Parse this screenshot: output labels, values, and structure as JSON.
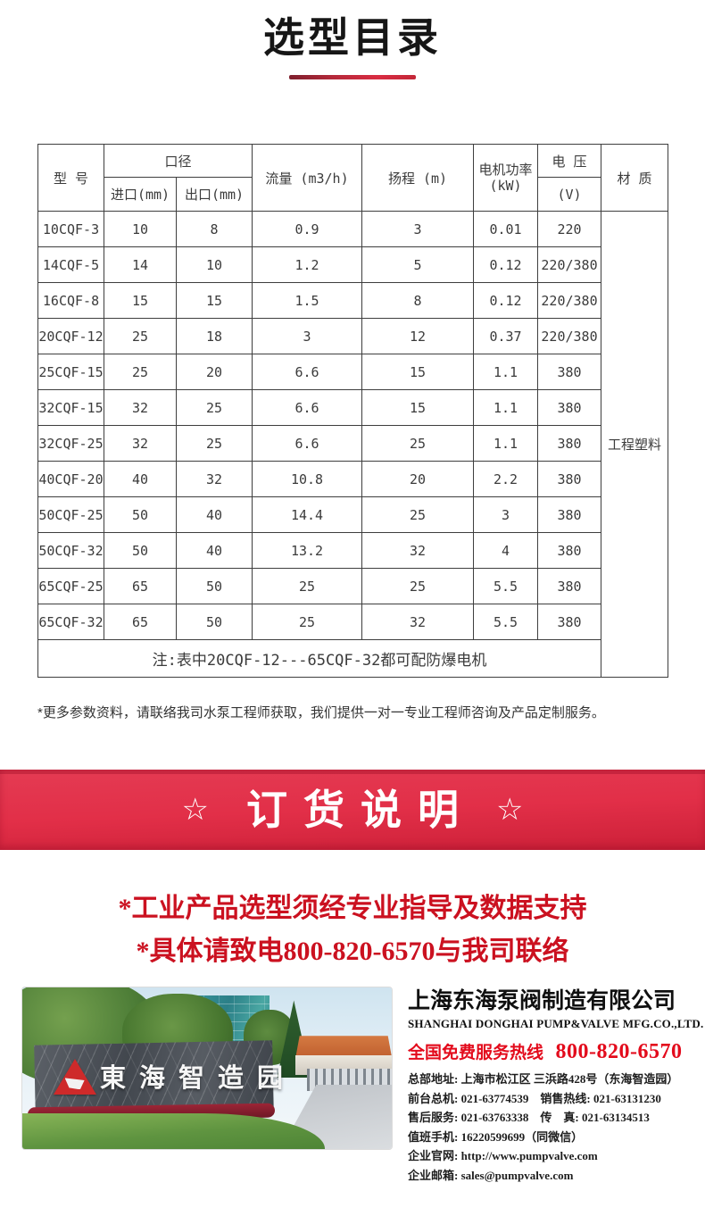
{
  "page_title": "选型目录",
  "table": {
    "header": {
      "model": "型 号",
      "caliber": "口径",
      "inlet": "进口(mm)",
      "outlet": "出口(mm)",
      "flow": "流量 (m3/h)",
      "head": "扬程 (m)",
      "power_line1": "电机功率",
      "power_line2": "(kW)",
      "voltage": "电 压",
      "voltage_unit": "(V)",
      "material": "材 质"
    },
    "rows": [
      {
        "model": "10CQF-3",
        "inlet": "10",
        "outlet": "8",
        "flow": "0.9",
        "head": "3",
        "power": "0.01",
        "voltage": "220"
      },
      {
        "model": "14CQF-5",
        "inlet": "14",
        "outlet": "10",
        "flow": "1.2",
        "head": "5",
        "power": "0.12",
        "voltage": "220/380"
      },
      {
        "model": "16CQF-8",
        "inlet": "15",
        "outlet": "15",
        "flow": "1.5",
        "head": "8",
        "power": "0.12",
        "voltage": "220/380"
      },
      {
        "model": "20CQF-12",
        "inlet": "25",
        "outlet": "18",
        "flow": "3",
        "head": "12",
        "power": "0.37",
        "voltage": "220/380"
      },
      {
        "model": "25CQF-15",
        "inlet": "25",
        "outlet": "20",
        "flow": "6.6",
        "head": "15",
        "power": "1.1",
        "voltage": "380"
      },
      {
        "model": "32CQF-15",
        "inlet": "32",
        "outlet": "25",
        "flow": "6.6",
        "head": "15",
        "power": "1.1",
        "voltage": "380"
      },
      {
        "model": "32CQF-25",
        "inlet": "32",
        "outlet": "25",
        "flow": "6.6",
        "head": "25",
        "power": "1.1",
        "voltage": "380"
      },
      {
        "model": "40CQF-20",
        "inlet": "40",
        "outlet": "32",
        "flow": "10.8",
        "head": "20",
        "power": "2.2",
        "voltage": "380"
      },
      {
        "model": "50CQF-25",
        "inlet": "50",
        "outlet": "40",
        "flow": "14.4",
        "head": "25",
        "power": "3",
        "voltage": "380"
      },
      {
        "model": "50CQF-32",
        "inlet": "50",
        "outlet": "40",
        "flow": "13.2",
        "head": "32",
        "power": "4",
        "voltage": "380"
      },
      {
        "model": "65CQF-25",
        "inlet": "65",
        "outlet": "50",
        "flow": "25",
        "head": "25",
        "power": "5.5",
        "voltage": "380"
      },
      {
        "model": "65CQF-32",
        "inlet": "65",
        "outlet": "50",
        "flow": "25",
        "head": "32",
        "power": "5.5",
        "voltage": "380"
      }
    ],
    "material_value": "工程塑料",
    "note": "注:表中20CQF-12---65CQF-32都可配防爆电机"
  },
  "footnote": "*更多参数资料，请联络我司水泵工程师获取，我们提供一对一专业工程师咨询及产品定制服务。",
  "order_banner": {
    "left_star": "☆",
    "title": "订货说明",
    "right_star": "☆"
  },
  "order_notes": {
    "line1": "*工业产品选型须经专业指导及数据支持",
    "line2": "*具体请致电800-820-6570与我司联络"
  },
  "photo": {
    "sign_text": "東海智造园"
  },
  "company": {
    "name": "上海东海泵阀制造有限公司",
    "name_en": "SHANGHAI DONGHAI PUMP&VALVE MFG.CO.,LTD.",
    "hotline_label": "全国免费服务热线",
    "hotline_number": "800-820-6570",
    "contacts": [
      "总部地址: 上海市松江区 三浜路428号（东海智造园）",
      "前台总机: 021-63774539　销售热线: 021-63131230",
      "售后服务: 021-63763338　传　真: 021-63134513",
      "值班手机: 16220599699（同微信）",
      "企业官网: http://www.pumpvalve.com",
      "企业邮箱: sales@pumpvalve.com"
    ]
  },
  "colors": {
    "banner_red": "#e22f48",
    "divider_red_dark": "#7e1f2d",
    "divider_red_bright": "#d92c42",
    "note_red": "#cb1120",
    "hotline_red": "#e30b1c",
    "table_border": "#3e3e3e",
    "logo_red": "#ce2a2a"
  }
}
